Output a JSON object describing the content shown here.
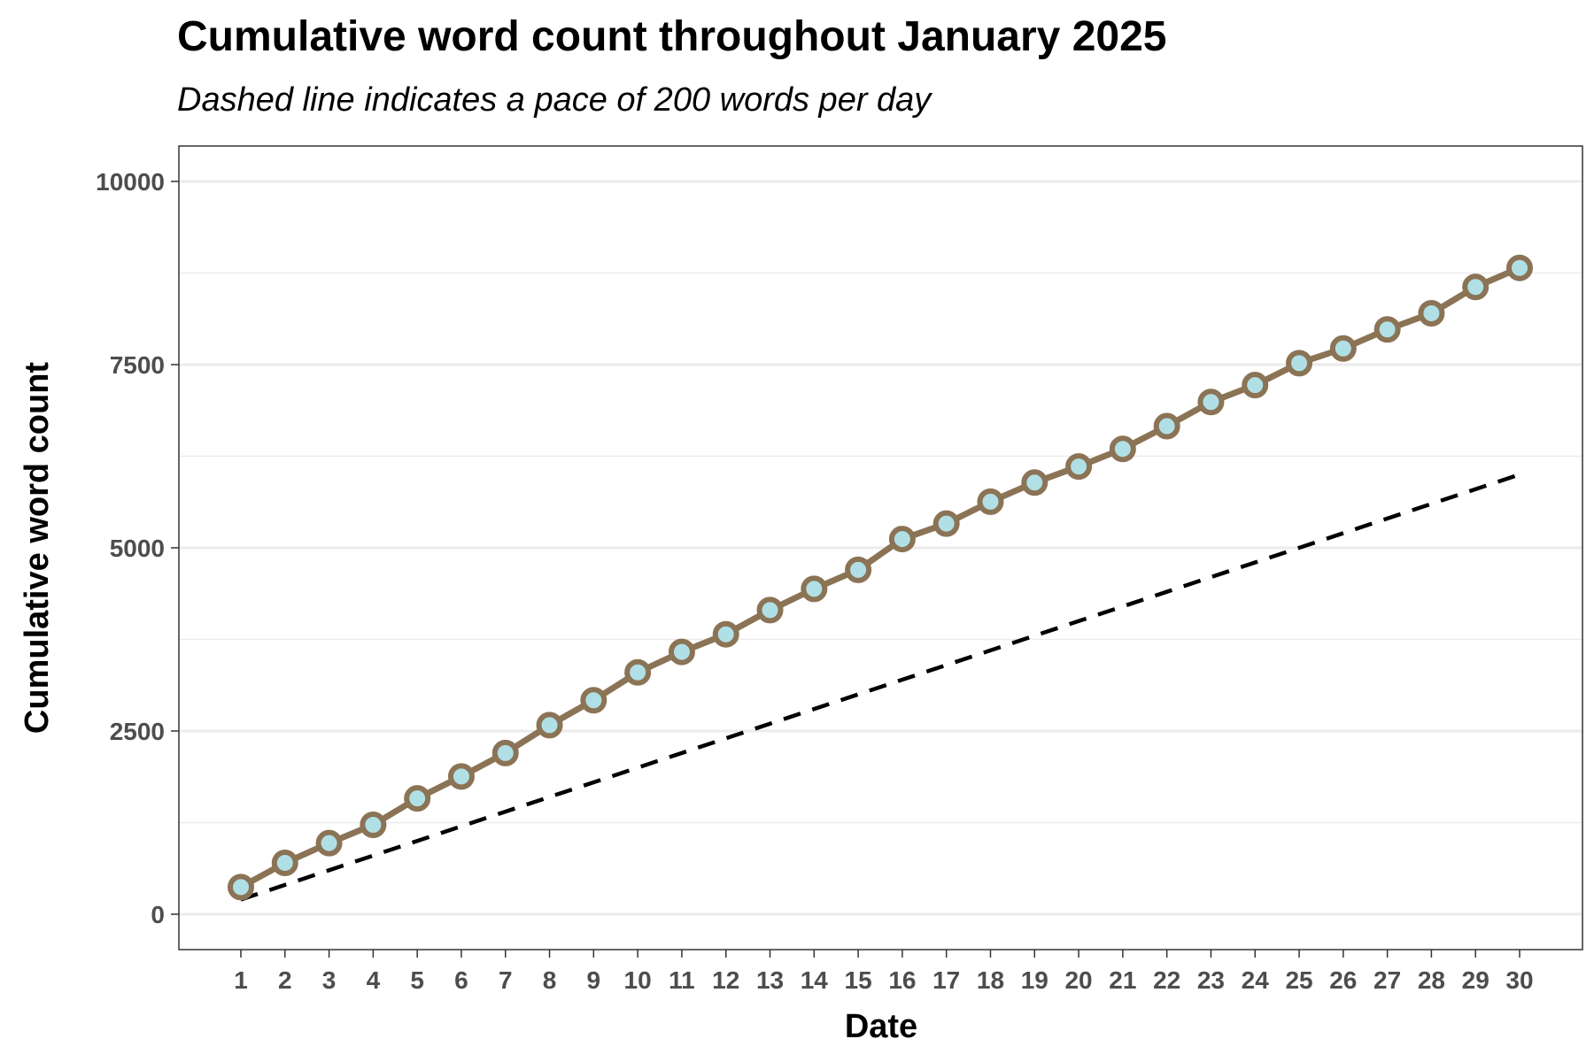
{
  "chart_data": {
    "type": "line",
    "title": "Cumulative word count throughout January 2025",
    "subtitle": "Dashed line indicates a pace of 200 words per day",
    "xlabel": "Date",
    "ylabel": "Cumulative word count",
    "x": [
      1,
      2,
      3,
      4,
      5,
      6,
      7,
      8,
      9,
      10,
      11,
      12,
      13,
      14,
      15,
      16,
      17,
      18,
      19,
      20,
      21,
      22,
      23,
      24,
      25,
      26,
      27,
      28,
      29,
      30
    ],
    "xlim": [
      1,
      30
    ],
    "ylim": [
      0,
      10000
    ],
    "y_ticks": [
      0,
      2500,
      5000,
      7500,
      10000
    ],
    "grid": true,
    "series": [
      {
        "values": [
          370,
          700,
          970,
          1220,
          1580,
          1880,
          2200,
          2580,
          2920,
          3300,
          3580,
          3820,
          4150,
          4440,
          4700,
          5120,
          5330,
          5630,
          5890,
          6110,
          6350,
          6660,
          6990,
          7220,
          7520,
          7720,
          7980,
          8200,
          8560,
          8820
        ],
        "line_color": "#8b7355",
        "point_fill": "#b0e0e6"
      },
      {
        "values": [
          200,
          400,
          600,
          800,
          1000,
          1200,
          1400,
          1600,
          1800,
          2000,
          2200,
          2400,
          2600,
          2800,
          3000,
          3200,
          3400,
          3600,
          3800,
          4000,
          4200,
          4400,
          4600,
          4800,
          5000,
          5200,
          5400,
          5600,
          5800,
          6000
        ],
        "line_color": "#000000",
        "line_style": "dashed"
      }
    ]
  }
}
